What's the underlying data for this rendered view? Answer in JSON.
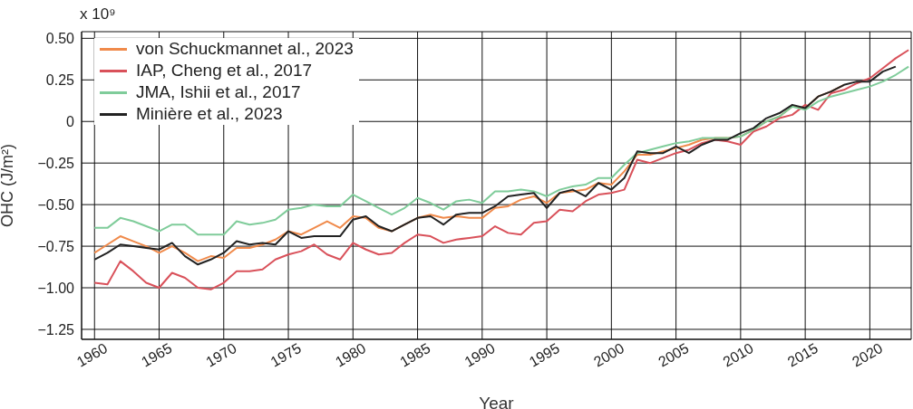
{
  "chart_data": {
    "type": "line",
    "xlabel": "Year",
    "ylabel": "OHC (J/m²)",
    "annotations": [
      "x 10⁹"
    ],
    "x": [
      1960,
      1961,
      1962,
      1963,
      1964,
      1965,
      1966,
      1967,
      1968,
      1969,
      1970,
      1971,
      1972,
      1973,
      1974,
      1975,
      1976,
      1977,
      1978,
      1979,
      1980,
      1981,
      1982,
      1983,
      1984,
      1985,
      1986,
      1987,
      1988,
      1989,
      1990,
      1991,
      1992,
      1993,
      1994,
      1995,
      1996,
      1997,
      1998,
      1999,
      2000,
      2001,
      2002,
      2003,
      2004,
      2005,
      2006,
      2007,
      2008,
      2009,
      2010,
      2011,
      2012,
      2013,
      2014,
      2015,
      2016,
      2017,
      2018,
      2019,
      2020,
      2021,
      2022,
      2023
    ],
    "series": [
      {
        "name": "von Schuckmannet al., 2023",
        "color": "#f08a4b",
        "values": [
          -0.79,
          -0.74,
          -0.69,
          -0.72,
          -0.75,
          -0.79,
          -0.75,
          -0.79,
          -0.84,
          -0.81,
          -0.82,
          -0.76,
          -0.76,
          -0.74,
          -0.71,
          -0.66,
          -0.68,
          -0.64,
          -0.6,
          -0.64,
          -0.57,
          -0.58,
          -0.64,
          -0.66,
          -0.62,
          -0.58,
          -0.56,
          -0.58,
          -0.57,
          -0.58,
          -0.58,
          -0.52,
          -0.51,
          -0.47,
          -0.45,
          -0.49,
          -0.43,
          -0.42,
          -0.41,
          -0.37,
          -0.38,
          -0.3,
          -0.2,
          -0.2,
          -0.18,
          -0.16,
          -0.14,
          -0.11,
          -0.1,
          -0.1,
          -0.09,
          -0.05,
          0.0,
          0.03,
          0.09,
          0.08,
          0.15,
          0.18,
          0.22,
          null,
          null,
          null,
          null,
          null
        ]
      },
      {
        "name": "IAP, Cheng et al., 2017",
        "color": "#d9515a",
        "values": [
          -0.97,
          -0.98,
          -0.84,
          -0.9,
          -0.97,
          -1.0,
          -0.91,
          -0.94,
          -1.0,
          -1.01,
          -0.97,
          -0.9,
          -0.9,
          -0.89,
          -0.83,
          -0.8,
          -0.78,
          -0.74,
          -0.8,
          -0.83,
          -0.73,
          -0.77,
          -0.8,
          -0.79,
          -0.73,
          -0.68,
          -0.69,
          -0.73,
          -0.71,
          -0.7,
          -0.69,
          -0.63,
          -0.67,
          -0.68,
          -0.61,
          -0.6,
          -0.53,
          -0.54,
          -0.48,
          -0.44,
          -0.43,
          -0.41,
          -0.23,
          -0.25,
          -0.22,
          -0.19,
          -0.17,
          -0.13,
          -0.11,
          -0.12,
          -0.14,
          -0.06,
          -0.03,
          0.02,
          0.04,
          0.1,
          0.07,
          0.17,
          0.19,
          0.23,
          0.26,
          0.32,
          0.38,
          0.43
        ]
      },
      {
        "name": "JMA, Ishii et al., 2017",
        "color": "#7fcc9a",
        "values": [
          -0.64,
          -0.64,
          -0.58,
          -0.6,
          -0.63,
          -0.66,
          -0.62,
          -0.62,
          -0.68,
          -0.68,
          -0.68,
          -0.6,
          -0.62,
          -0.61,
          -0.59,
          -0.53,
          -0.52,
          -0.5,
          -0.51,
          -0.51,
          -0.44,
          -0.48,
          -0.52,
          -0.56,
          -0.52,
          -0.46,
          -0.49,
          -0.53,
          -0.48,
          -0.47,
          -0.49,
          -0.42,
          -0.42,
          -0.41,
          -0.42,
          -0.45,
          -0.41,
          -0.39,
          -0.38,
          -0.34,
          -0.34,
          -0.26,
          -0.19,
          -0.17,
          -0.15,
          -0.13,
          -0.12,
          -0.1,
          -0.1,
          -0.1,
          -0.09,
          -0.05,
          0.0,
          0.03,
          0.09,
          0.07,
          0.12,
          0.15,
          0.17,
          0.19,
          0.21,
          0.24,
          0.28,
          0.33
        ]
      },
      {
        "name": "Minière et al., 2023",
        "color": "#222222",
        "values": [
          -0.83,
          -0.79,
          -0.74,
          -0.75,
          -0.76,
          -0.77,
          -0.73,
          -0.81,
          -0.86,
          -0.83,
          -0.79,
          -0.72,
          -0.74,
          -0.73,
          -0.74,
          -0.66,
          -0.7,
          -0.69,
          -0.69,
          -0.69,
          -0.59,
          -0.57,
          -0.63,
          -0.66,
          -0.62,
          -0.58,
          -0.57,
          -0.62,
          -0.56,
          -0.55,
          -0.55,
          -0.51,
          -0.45,
          -0.44,
          -0.43,
          -0.52,
          -0.43,
          -0.41,
          -0.45,
          -0.37,
          -0.41,
          -0.34,
          -0.18,
          -0.19,
          -0.19,
          -0.15,
          -0.19,
          -0.14,
          -0.11,
          -0.11,
          -0.07,
          -0.04,
          0.02,
          0.05,
          0.1,
          0.08,
          0.15,
          0.18,
          0.22,
          0.24,
          0.24,
          0.3,
          0.33,
          null
        ]
      }
    ],
    "xlim": [
      1959,
      2023.2
    ],
    "xticks": [
      1960,
      1965,
      1970,
      1975,
      1980,
      1985,
      1990,
      1995,
      2000,
      2005,
      2010,
      2015,
      2020
    ],
    "ylim": [
      -1.31,
      0.54
    ],
    "yticks": [
      {
        "value": 0.5,
        "label": "0.50"
      },
      0.25,
      0,
      {
        "value": -0.25,
        "label": "−0.25"
      },
      {
        "value": -0.5,
        "label": "−0.50"
      },
      {
        "value": -0.75,
        "label": "−0.75"
      },
      {
        "value": -1,
        "label": "−1.00"
      },
      {
        "value": -1.25,
        "label": "−1.25"
      }
    ],
    "grid": true,
    "legend": "top left",
    "marker": "none",
    "line_style": "solid"
  }
}
